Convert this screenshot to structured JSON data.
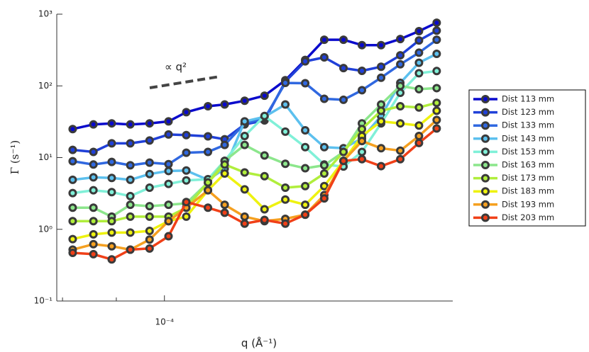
{
  "chart_data": {
    "type": "line",
    "xlabel": "q (Å⁻¹)",
    "ylabel": "Γ (s⁻¹)",
    "annotation": "∝ q²",
    "log_x": true,
    "log_y": true,
    "xlim": [
      7.9e-05,
      0.000188
    ],
    "ylim": [
      0.1,
      1000
    ],
    "xticks": [
      {
        "value": 0.0001,
        "label": "10⁻⁴"
      }
    ],
    "xminorticks": [
      8e-05,
      9e-05
    ],
    "yticks": [
      {
        "value": 0.1,
        "label": "10⁻¹"
      },
      {
        "value": 1,
        "label": "10⁰"
      },
      {
        "value": 10,
        "label": "10¹"
      },
      {
        "value": 100,
        "label": "10²"
      },
      {
        "value": 1000,
        "label": "10³"
      }
    ],
    "legend": "right",
    "marker_edge_color": "#3a3a3a",
    "x": [
      8.18e-05,
      8.56e-05,
      8.91e-05,
      9.28e-05,
      9.68e-05,
      0.0001009,
      0.0001049,
      0.00011,
      0.0001141,
      0.0001192,
      0.0001245,
      0.0001303,
      0.0001361,
      0.0001419,
      0.000148,
      0.0001541,
      0.0001607,
      0.0001676,
      0.0001746,
      0.0001815
    ],
    "series": [
      {
        "name": "Dist 113 mm",
        "color": "#0a0acc",
        "values": [
          25,
          29,
          30,
          29,
          30,
          32,
          43,
          52,
          55,
          62,
          73,
          120,
          230,
          440,
          440,
          370,
          370,
          450,
          580,
          760
        ]
      },
      {
        "name": "Dist 123 mm",
        "color": "#2040d8",
        "values": [
          12.8,
          12,
          15.8,
          15.8,
          17.3,
          21,
          20.6,
          19.8,
          18,
          29,
          33,
          115,
          220,
          250,
          177,
          162,
          185,
          267,
          430,
          590
        ]
      },
      {
        "name": "Dist 133 mm",
        "color": "#3068e0",
        "values": [
          8.9,
          8,
          8.7,
          7.8,
          8.5,
          8.1,
          11.7,
          12,
          15,
          30,
          35,
          110,
          109,
          66,
          64,
          87,
          130,
          200,
          290,
          440
        ]
      },
      {
        "name": "Dist 143 mm",
        "color": "#5cc0ee",
        "values": [
          4.9,
          5.3,
          5.2,
          4.9,
          5.9,
          6.5,
          6.6,
          4.9,
          7,
          32,
          37,
          55,
          24,
          14,
          13.5,
          18.5,
          38,
          110,
          210,
          280
        ]
      },
      {
        "name": "Dist 153 mm",
        "color": "#80f0d8",
        "values": [
          3.2,
          3.5,
          3.3,
          2.9,
          3.8,
          4.3,
          4.8,
          5,
          9,
          20,
          38,
          23,
          14,
          8,
          7.5,
          12,
          30,
          80,
          150,
          161
        ]
      },
      {
        "name": "Dist 163 mm",
        "color": "#8ce68c",
        "values": [
          2,
          2,
          1.5,
          2.2,
          2.1,
          2.2,
          2.3,
          4.5,
          9,
          15,
          10.7,
          8.2,
          7.1,
          7.8,
          12,
          30,
          55,
          100,
          90,
          93
        ]
      },
      {
        "name": "Dist 173 mm",
        "color": "#b0ee3c",
        "values": [
          1.3,
          1.3,
          1.3,
          1.5,
          1.5,
          1.5,
          2,
          4.5,
          8,
          6.2,
          5.5,
          3.8,
          4,
          6,
          12,
          25,
          45,
          52,
          50,
          58
        ]
      },
      {
        "name": "Dist 183 mm",
        "color": "#eef210",
        "values": [
          0.73,
          0.85,
          0.9,
          0.9,
          0.95,
          1.3,
          1.5,
          3.5,
          6,
          3.6,
          1.9,
          2.6,
          2.2,
          4,
          9,
          20,
          32,
          30,
          28,
          45
        ]
      },
      {
        "name": "Dist 193 mm",
        "color": "#f5a020",
        "values": [
          0.52,
          0.62,
          0.58,
          0.52,
          0.72,
          1.3,
          2,
          3.5,
          2.2,
          1.5,
          1.3,
          1.4,
          1.6,
          3,
          9,
          17,
          13.5,
          12.5,
          20,
          33.5
        ]
      },
      {
        "name": "Dist 203 mm",
        "color": "#f04018",
        "values": [
          0.47,
          0.45,
          0.38,
          0.52,
          0.54,
          0.8,
          2.4,
          2,
          1.7,
          1.2,
          1.35,
          1.2,
          1.6,
          2.7,
          9,
          9.5,
          7.6,
          9.5,
          16,
          25.5
        ]
      }
    ]
  }
}
